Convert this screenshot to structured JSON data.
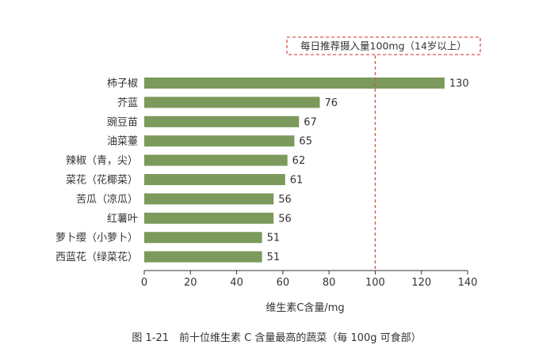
{
  "chart_data": {
    "type": "bar",
    "orientation": "horizontal",
    "categories": [
      "柿子椒",
      "芥蓝",
      "豌豆苗",
      "油菜薹",
      "辣椒（青，尖）",
      "菜花（花椰菜）",
      "苦瓜（凉瓜）",
      "红薯叶",
      "萝卜缨（小萝卜）",
      "西蓝花（绿菜花）"
    ],
    "values": [
      130,
      76,
      67,
      65,
      62,
      61,
      56,
      56,
      51,
      51
    ],
    "xlabel": "维生素C含量/mg",
    "xlim": [
      0,
      140
    ],
    "xticks": [
      0,
      20,
      40,
      60,
      80,
      100,
      120,
      140
    ],
    "grid": false,
    "reference_line": {
      "value": 100,
      "label": "每日推荐摄入量100mg（14岁以上）",
      "color": "#d9534f"
    },
    "bar_color": "#7c9a5b"
  },
  "caption": "图 1-21　前十位维生素 C 含量最高的蔬菜（每 100g 可食部）"
}
